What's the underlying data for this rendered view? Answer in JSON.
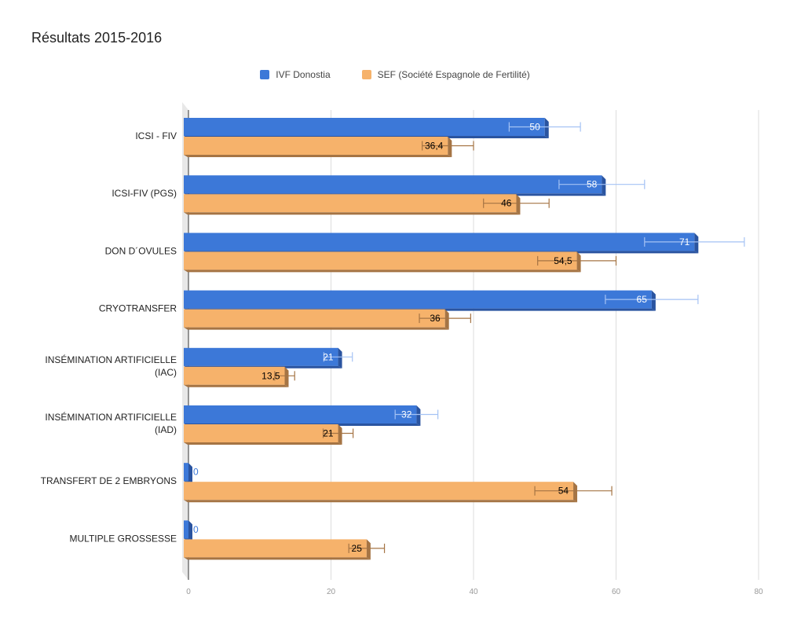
{
  "chart_data": {
    "type": "bar",
    "orientation": "horizontal",
    "title": "Résultats 2015-2016",
    "xlabel": "",
    "ylabel": "",
    "xlim": [
      0,
      80
    ],
    "ticks": [
      0,
      20,
      40,
      60,
      80
    ],
    "grid": true,
    "legend_position": "top-center",
    "categories": [
      [
        "ICSI - FIV"
      ],
      [
        "ICSI-FIV (PGS)"
      ],
      [
        "DON D´OVULES"
      ],
      [
        "CRYOTRANSFER"
      ],
      [
        "INSÉMINATION ARTIFICIELLE",
        "(IAC)"
      ],
      [
        "INSÉMINATION ARTIFICIELLE",
        "(IAD)"
      ],
      [
        "TRANSFERT DE 2 EMBRYONS"
      ],
      [
        "MULTIPLE GROSSESSE"
      ]
    ],
    "series": [
      {
        "name": "IVF Donostia",
        "color": "#3c78d8",
        "side_color": "#2a54a0",
        "error_color": "#a4c2f4",
        "label_color": "#ffffff",
        "values": [
          50,
          58,
          71,
          65,
          21,
          32,
          0,
          0
        ],
        "labels": [
          "50",
          "58",
          "71",
          "65",
          "21",
          "32",
          "0",
          "0"
        ],
        "error": [
          5,
          6,
          7,
          6.5,
          2,
          3,
          0,
          0
        ]
      },
      {
        "name": "SEF (Société Espagnole de Fertilité)",
        "color": "#f6b26b",
        "side_color": "#a57444",
        "error_color": "#a57444",
        "label_color": "#000000",
        "values": [
          36.4,
          46,
          54.5,
          36,
          13.5,
          21,
          54,
          25
        ],
        "labels": [
          "36,4",
          "46",
          "54,5",
          "36",
          "13,5",
          "21",
          "54",
          "25"
        ],
        "error": [
          3.6,
          4.6,
          5.5,
          3.6,
          1.4,
          2.1,
          5.4,
          2.5
        ]
      }
    ]
  }
}
